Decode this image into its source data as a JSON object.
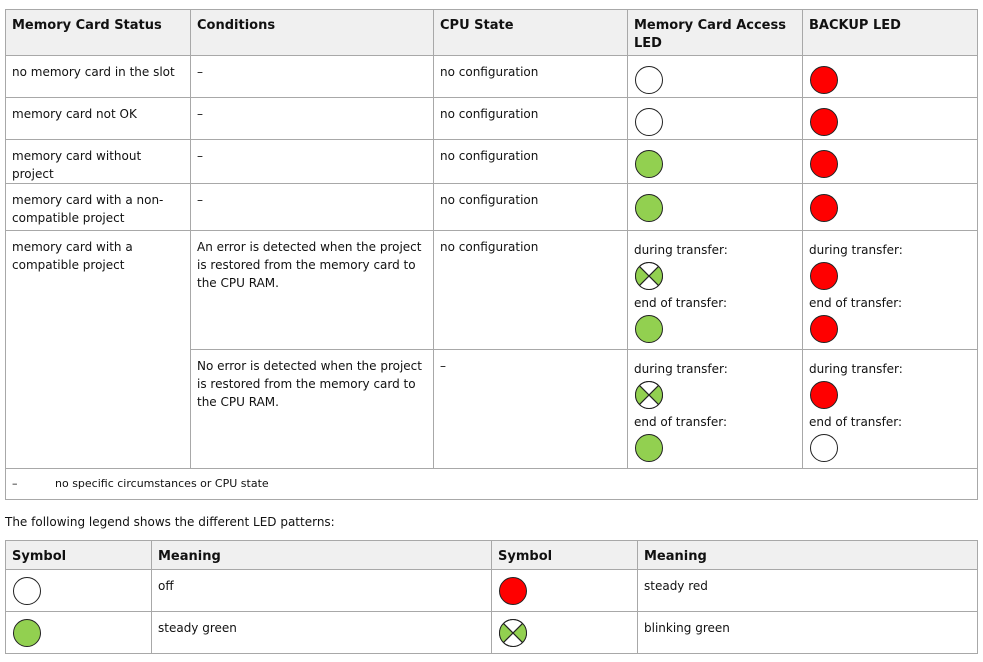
{
  "table": {
    "header": [
      "Memory Card Status",
      "Conditions",
      "CPU State",
      "Memory Card Access LED",
      "BACKUP LED"
    ],
    "rows": [
      {
        "status": "no memory card in the slot",
        "conditions": "–",
        "cpu_state": "no configuration"
      },
      {
        "status": "memory card not OK",
        "conditions": "–",
        "cpu_state": "no configuration"
      },
      {
        "status": "memory card without project",
        "conditions": "–",
        "cpu_state": "no configuration"
      },
      {
        "status": "memory card with a non-compatible project",
        "conditions": "–",
        "cpu_state": "no configuration"
      },
      {
        "status": "memory card with a compatible project",
        "cases": [
          {
            "conditions": "An error is detected when the project is restored from the memory card to the CPU RAM.",
            "cpu_state": "no configuration",
            "access_led": [
              "during transfer:",
              "end of transfer:"
            ],
            "backup_led": [
              "during transfer:",
              "end of transfer:"
            ]
          },
          {
            "conditions": "No error is detected when the project is restored from the memory card to the CPU RAM.",
            "cpu_state": "–",
            "access_led": [
              "during transfer:",
              "end of transfer:"
            ],
            "backup_led": [
              "during transfer:",
              "end of transfer:"
            ]
          }
        ]
      }
    ],
    "footnote": {
      "symbol": "–",
      "text": "no specific circumstances or CPU state"
    }
  },
  "legend_intro": "The following legend shows the different LED patterns:",
  "legend": {
    "header": [
      "Symbol",
      "Meaning",
      "Symbol",
      "Meaning"
    ],
    "rows": [
      [
        "off",
        "steady red"
      ],
      [
        "steady green",
        "blinking green"
      ]
    ]
  }
}
